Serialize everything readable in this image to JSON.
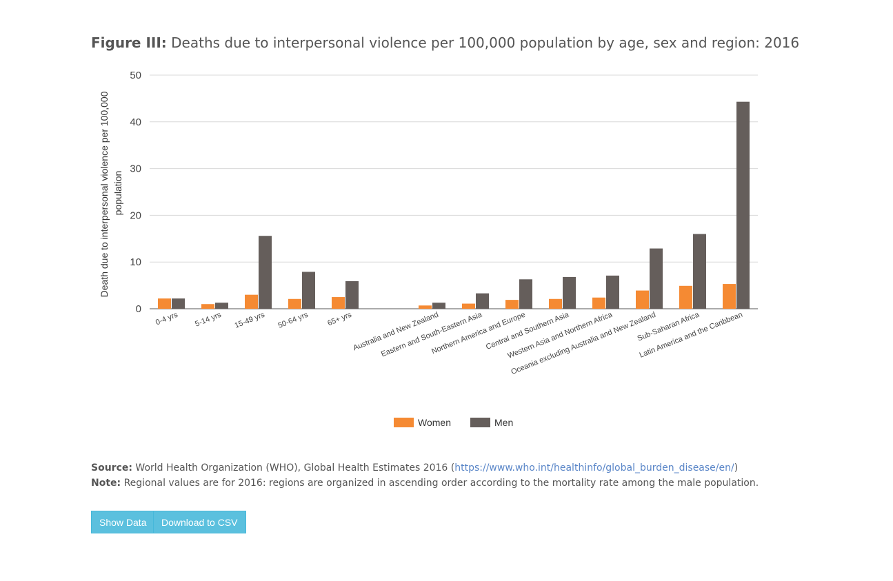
{
  "title": {
    "prefix": "Figure III:",
    "text": " Deaths due to interpersonal violence per 100,000 population by age, sex and region: 2016"
  },
  "chart_data": {
    "type": "bar",
    "ylabel": [
      "Death due to interpersonal violence per 100,000",
      "population"
    ],
    "ylim": [
      0,
      50
    ],
    "yticks": [
      0,
      10,
      20,
      30,
      40,
      50
    ],
    "grid": true,
    "legend_position": "bottom",
    "categories": [
      "0-4 yrs",
      "5-14 yrs",
      "15-49 yrs",
      "50-64 yrs",
      "65+ yrs",
      "",
      "Australia and New Zealand",
      "Eastern and South-Eastern Asia",
      "Northern America and Europe",
      "Central and Southern Asia",
      "Western Asia and Northern Africa",
      "Oceania excluding Australia and New Zealand",
      "Sub-Saharan Africa",
      "Latin America and the Caribbean"
    ],
    "series": [
      {
        "name": "Women",
        "color": "#f58a33",
        "values": [
          2.2,
          1.0,
          3.0,
          2.1,
          2.5,
          null,
          0.7,
          1.1,
          1.9,
          2.1,
          2.4,
          3.9,
          4.9,
          5.3
        ]
      },
      {
        "name": "Men",
        "color": "#655e5b",
        "values": [
          2.2,
          1.3,
          15.6,
          7.9,
          5.9,
          null,
          1.3,
          3.3,
          6.3,
          6.8,
          7.1,
          12.9,
          16.0,
          44.3
        ]
      }
    ]
  },
  "notes": {
    "source_label": "Source:",
    "source_text": " World Health Organization (WHO), Global Health Estimates 2016 (",
    "source_link": "https://www.who.int/healthinfo/global_burden_disease/en/",
    "source_end": ")",
    "note_label": "Note:",
    "note_text": " Regional values are for 2016: regions are organized in ascending order according to the mortality rate among the male population."
  },
  "buttons": {
    "show_data": "Show Data",
    "download_csv": "Download to CSV"
  }
}
